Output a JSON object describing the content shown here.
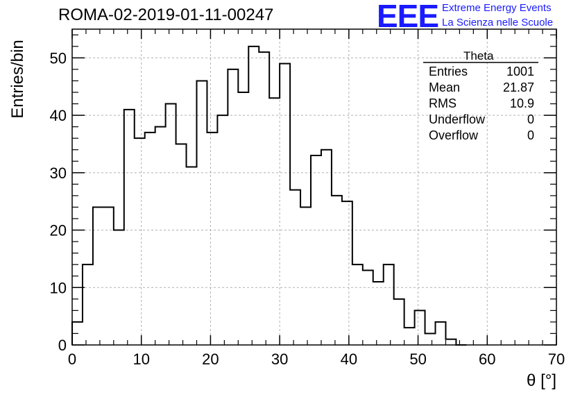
{
  "header": {
    "run_title": "ROMA-02-2019-01-11-00247",
    "logo_text": "EEE",
    "logo_line1": "Extreme Energy Events",
    "logo_line2": "La Scienza nelle Scuole"
  },
  "stats": {
    "title": "Theta",
    "rows": [
      {
        "label": "Entries",
        "value": "1001"
      },
      {
        "label": "Mean",
        "value": "21.87"
      },
      {
        "label": "RMS",
        "value": "10.9"
      },
      {
        "label": "Underflow",
        "value": "0"
      },
      {
        "label": "Overflow",
        "value": "0"
      }
    ]
  },
  "colors": {
    "logo": "#1a1aff",
    "axis": "#000000",
    "grid": "#b0b0b0"
  },
  "chart_data": {
    "type": "histogram",
    "xlabel": "θ [°]",
    "ylabel": "Entries/bin",
    "xlim": [
      0,
      70
    ],
    "ylim": [
      0,
      55
    ],
    "bin_width": 1.5,
    "bin_start": 0,
    "xticks": [
      0,
      10,
      20,
      30,
      40,
      50,
      60,
      70
    ],
    "yticks": [
      0,
      10,
      20,
      30,
      40,
      50
    ],
    "grid": true,
    "values": [
      4,
      14,
      24,
      24,
      20,
      41,
      36,
      37,
      38,
      42,
      35,
      31,
      46,
      37,
      40,
      48,
      44,
      52,
      51,
      43,
      49,
      27,
      24,
      33,
      34,
      26,
      25,
      14,
      13,
      11,
      14,
      8,
      3,
      6,
      2,
      4,
      1,
      0
    ]
  }
}
